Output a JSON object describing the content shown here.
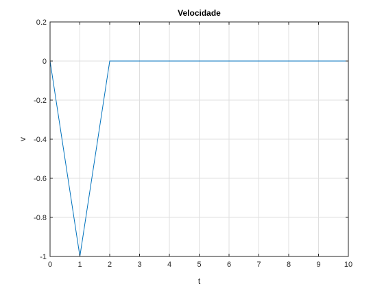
{
  "chart_data": {
    "type": "line",
    "title": "Velocidade",
    "xlabel": "t",
    "ylabel": "v",
    "xlim": [
      0,
      10
    ],
    "ylim": [
      -1,
      0.2
    ],
    "grid": true,
    "xticks": [
      0,
      1,
      2,
      3,
      4,
      5,
      6,
      7,
      8,
      9,
      10
    ],
    "xtick_labels": [
      "0",
      "1",
      "2",
      "3",
      "4",
      "5",
      "6",
      "7",
      "8",
      "9",
      "10"
    ],
    "yticks": [
      0.2,
      0,
      -0.2,
      -0.4,
      -0.6,
      -0.8,
      -1
    ],
    "ytick_labels": [
      "0.2",
      "0",
      "-0.2",
      "-0.4",
      "-0.6",
      "-0.8",
      "-1"
    ],
    "series": [
      {
        "color": "#0072bd",
        "x": [
          0,
          1,
          2,
          10
        ],
        "y": [
          0,
          -1,
          0,
          0
        ]
      }
    ]
  }
}
